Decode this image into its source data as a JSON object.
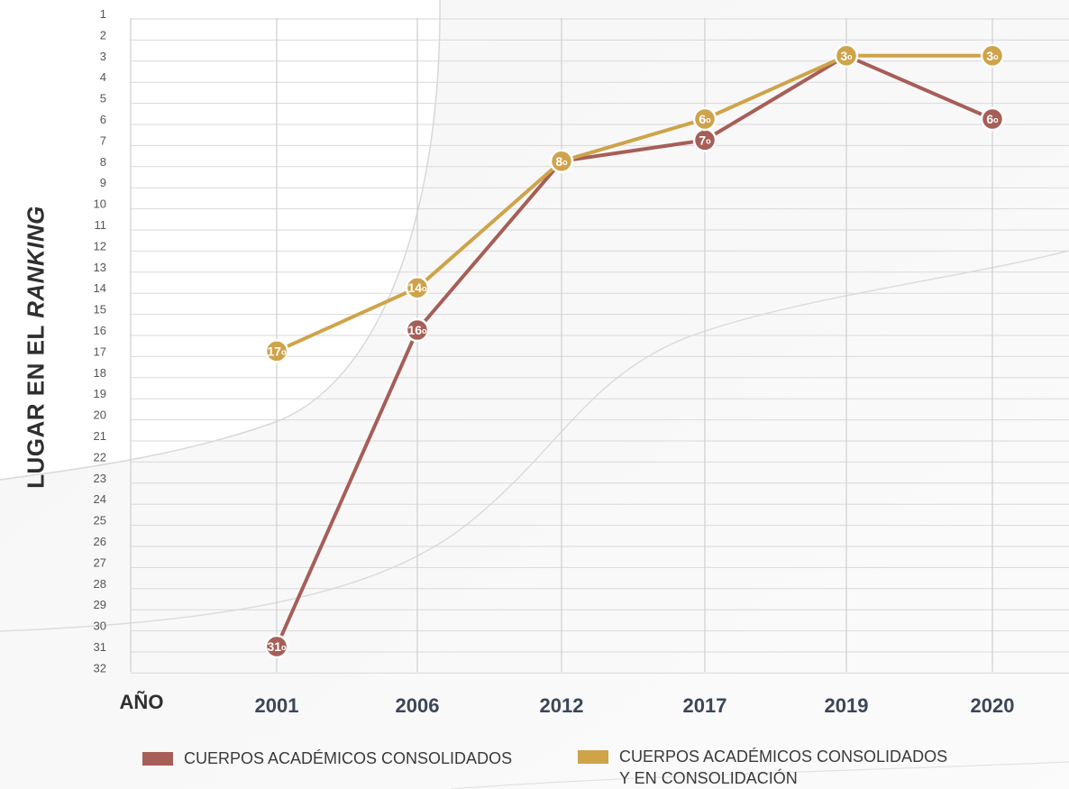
{
  "chart_data": {
    "type": "line",
    "title": "",
    "ylabel": {
      "prefix": "LUGAR EN EL ",
      "emphasis": "RANKING"
    },
    "xlabel": "AÑO",
    "x": [
      "2001",
      "2006",
      "2012",
      "2017",
      "2019",
      "2020"
    ],
    "y_ticks": [
      1,
      2,
      3,
      4,
      5,
      6,
      7,
      8,
      9,
      10,
      11,
      12,
      13,
      14,
      15,
      16,
      17,
      18,
      19,
      20,
      21,
      22,
      23,
      24,
      25,
      26,
      27,
      28,
      29,
      30,
      31,
      32
    ],
    "ylim": [
      1,
      32
    ],
    "y_inverted": true,
    "grid": true,
    "legend_position": "bottom",
    "point_label_suffix": "o",
    "series": [
      {
        "name": "CUERPOS ACADÉMICOS CONSOLIDADOS",
        "color": "#a65e57",
        "values": [
          31,
          16,
          8,
          7,
          3,
          6
        ]
      },
      {
        "name_lines": [
          "CUERPOS ACADÉMICOS CONSOLIDADOS",
          "Y EN CONSOLIDACIÓN"
        ],
        "color": "#cea34a",
        "values": [
          17,
          14,
          8,
          6,
          3,
          3
        ]
      }
    ]
  }
}
